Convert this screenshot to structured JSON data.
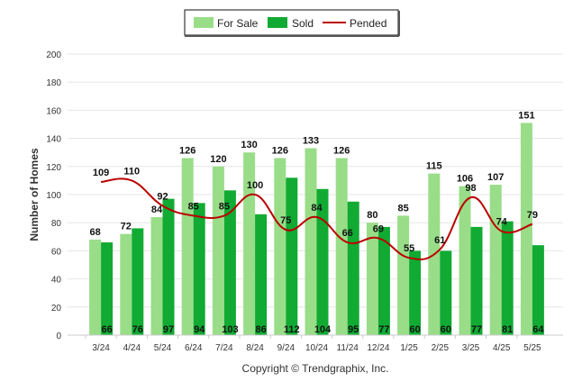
{
  "chart_data": {
    "type": "bar",
    "ylabel": "Number of Homes",
    "xlabel": "",
    "ylim": [
      0,
      200
    ],
    "y_ticks": [
      0,
      20,
      40,
      60,
      80,
      100,
      120,
      140,
      160,
      180,
      200
    ],
    "grid": true,
    "legend_position": "top-center",
    "categories": [
      "3/24",
      "4/24",
      "5/24",
      "6/24",
      "7/24",
      "8/24",
      "9/24",
      "10/24",
      "11/24",
      "12/24",
      "1/25",
      "2/25",
      "3/25",
      "4/25",
      "5/25"
    ],
    "series": [
      {
        "name": "For Sale",
        "type": "bar",
        "color": "#99dd88",
        "values": [
          68,
          72,
          84,
          126,
          120,
          130,
          126,
          133,
          126,
          80,
          85,
          115,
          106,
          107,
          151
        ]
      },
      {
        "name": "Sold",
        "type": "bar",
        "color": "#11aa33",
        "values": [
          66,
          76,
          97,
          94,
          103,
          86,
          112,
          104,
          95,
          77,
          60,
          60,
          77,
          81,
          64
        ]
      },
      {
        "name": "Pended",
        "type": "line",
        "color": "#bb0000",
        "values": [
          109,
          110,
          92,
          85,
          85,
          100,
          75,
          84,
          66,
          69,
          55,
          61,
          98,
          74,
          79
        ]
      }
    ],
    "footer": "Copyright © Trendgraphix, Inc."
  }
}
